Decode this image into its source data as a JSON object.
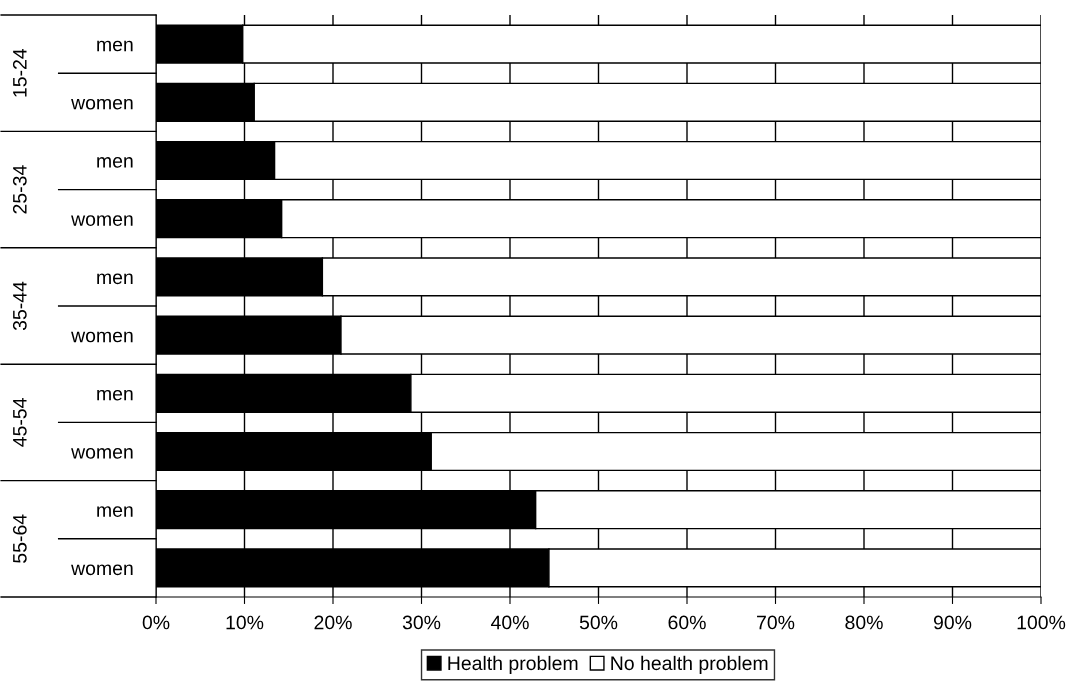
{
  "chart_data": {
    "type": "bar",
    "orientation": "horizontal",
    "stacked": true,
    "categories": [
      "men",
      "women",
      "men",
      "women",
      "men",
      "women",
      "men",
      "women",
      "men",
      "women"
    ],
    "annotations": [
      "15-24",
      "25-34",
      "35-44",
      "45-54",
      "55-64"
    ],
    "series": [
      {
        "name": "Health problem",
        "color": "#000000",
        "values": [
          9.8,
          11.1,
          13.4,
          14.2,
          18.8,
          20.9,
          28.8,
          31.1,
          42.9,
          44.4
        ]
      },
      {
        "name": "No health problem",
        "color": "#ffffff",
        "values": [
          90.2,
          88.9,
          86.6,
          85.8,
          81.2,
          79.1,
          71.2,
          68.9,
          57.1,
          55.6
        ]
      }
    ],
    "xlim": [
      0,
      100
    ],
    "xticks": [
      {
        "value": 0,
        "label": "0%"
      },
      {
        "value": 10,
        "label": "10%"
      },
      {
        "value": 20,
        "label": "20%"
      },
      {
        "value": 30,
        "label": "30%"
      },
      {
        "value": 40,
        "label": "40%"
      },
      {
        "value": 50,
        "label": "50%"
      },
      {
        "value": 60,
        "label": "60%"
      },
      {
        "value": 70,
        "label": "70%"
      },
      {
        "value": 80,
        "label": "80%"
      },
      {
        "value": 90,
        "label": "90%"
      },
      {
        "value": 100,
        "label": "100%"
      }
    ],
    "grid": "x",
    "legend": "bottom"
  }
}
